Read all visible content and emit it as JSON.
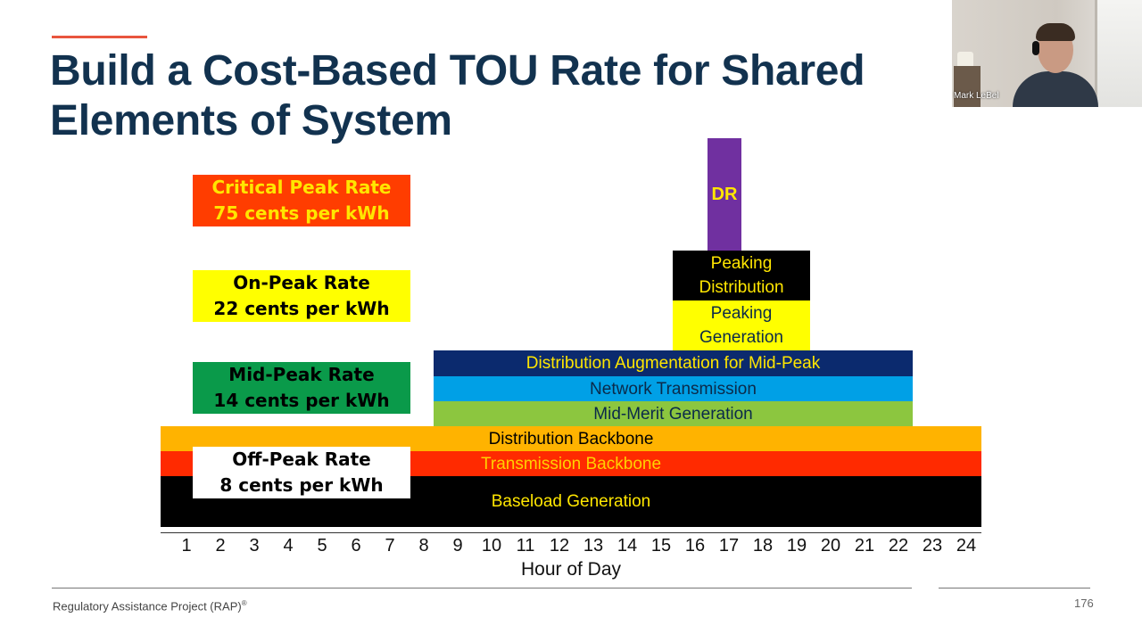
{
  "slide": {
    "title_line1": "Build a Cost-Based TOU Rate for Shared",
    "title_line2": "Elements of System"
  },
  "rates": {
    "critical": {
      "line1": "Critical Peak Rate",
      "line2": "75 cents per kWh",
      "bg": "#ff3d00",
      "fg": "#ffe600"
    },
    "on_peak": {
      "line1": "On-Peak Rate",
      "line2": "22 cents per kWh",
      "bg": "#ffff00",
      "fg": "#000000"
    },
    "mid_peak": {
      "line1": "Mid-Peak Rate",
      "line2": "14 cents per kWh",
      "bg": "#0a9a4a",
      "fg": "#000000"
    },
    "off_peak": {
      "line1": "Off-Peak Rate",
      "line2": "8 cents per kWh",
      "bg": "#ffffff",
      "fg": "#000000"
    }
  },
  "cost_layers": [
    {
      "label": "Baseload Generation",
      "start_hour": 1,
      "end_hour": 24,
      "bg": "#000000",
      "fg": "#ffe600"
    },
    {
      "label": "Transmission Backbone",
      "start_hour": 1,
      "end_hour": 24,
      "bg": "#ff2a00",
      "fg": "#ffd100"
    },
    {
      "label": "Distribution Backbone",
      "start_hour": 1,
      "end_hour": 24,
      "bg": "#ffb300",
      "fg": "#000000"
    },
    {
      "label": "Mid-Merit Generation",
      "start_hour": 9,
      "end_hour": 22,
      "bg": "#8cc63f",
      "fg": "#0b2a4a"
    },
    {
      "label": "Network Transmission",
      "start_hour": 9,
      "end_hour": 22,
      "bg": "#00a0e6",
      "fg": "#0b2a4a"
    },
    {
      "label": "Distribution Augmentation for Mid-Peak",
      "start_hour": 9,
      "end_hour": 22,
      "bg": "#0b2a6e",
      "fg": "#ffe600"
    },
    {
      "label_line1": "Peaking",
      "label_line2": "Generation",
      "start_hour": 16,
      "end_hour": 19,
      "bg": "#ffff00",
      "fg": "#0b2a4a"
    },
    {
      "label_line1": "Peaking",
      "label_line2": "Distribution",
      "start_hour": 16,
      "end_hour": 19,
      "bg": "#000000",
      "fg": "#ffe600"
    },
    {
      "label": "DR",
      "start_hour": 17,
      "end_hour": 17,
      "bg": "#7030a0",
      "fg": "#ffe600"
    }
  ],
  "axis": {
    "hours": [
      "1",
      "2",
      "3",
      "4",
      "5",
      "6",
      "7",
      "8",
      "9",
      "10",
      "11",
      "12",
      "13",
      "14",
      "15",
      "16",
      "17",
      "18",
      "19",
      "20",
      "21",
      "22",
      "23",
      "24"
    ],
    "title": "Hour of Day"
  },
  "footer": {
    "org": "Regulatory Assistance Project (RAP)",
    "reg_mark": "®",
    "page": "176"
  },
  "video": {
    "participant_name": "Mark LeBel"
  }
}
